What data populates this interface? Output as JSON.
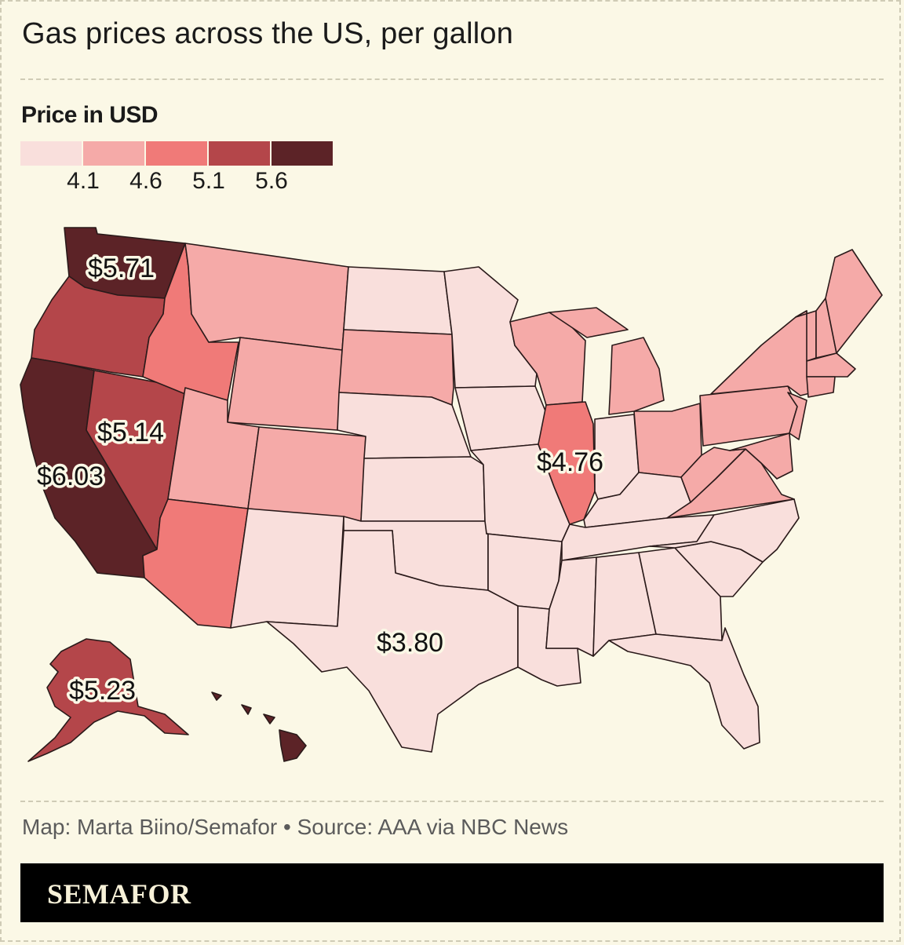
{
  "title": "Gas prices across the US, per gallon",
  "legend": {
    "title": "Price in USD",
    "colors": [
      "#f9dfdc",
      "#f5aaa8",
      "#f07a78",
      "#b4464a",
      "#5c2327"
    ],
    "ticks": [
      "4.1",
      "4.6",
      "5.1",
      "5.6"
    ]
  },
  "labels": {
    "washington": "$5.71",
    "nevada": "$5.14",
    "california": "$6.03",
    "illinois": "$4.76",
    "texas": "$3.80",
    "alaska": "$5.23"
  },
  "source": "Map: Marta Biino/Semafor • Source: AAA via NBC News",
  "brand": "SEMAFOR"
}
